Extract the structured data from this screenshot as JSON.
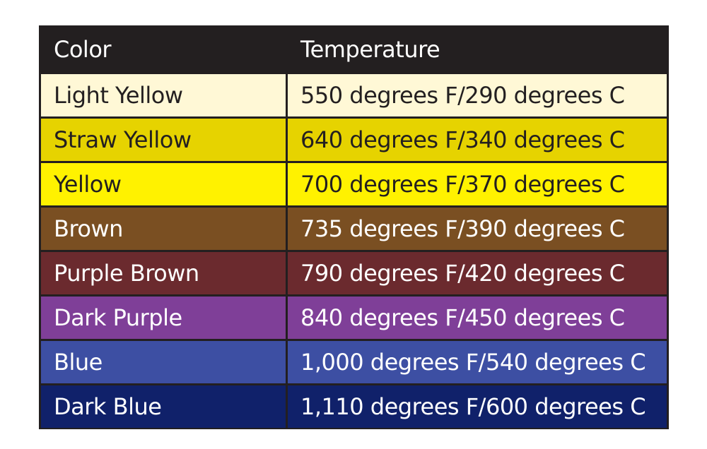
{
  "table": {
    "headers": [
      "Color",
      "Temperature"
    ],
    "rows": [
      {
        "color": "Light Yellow",
        "temperature": "550 degrees F/290 degrees C",
        "bg": "#fff8d6",
        "fg": "#231f20"
      },
      {
        "color": "Straw Yellow",
        "temperature": "640 degrees F/340 degrees C",
        "bg": "#e6d300",
        "fg": "#231f20"
      },
      {
        "color": "Yellow",
        "temperature": "700 degrees F/370 degrees C",
        "bg": "#fff200",
        "fg": "#231f20"
      },
      {
        "color": "Brown",
        "temperature": "735 degrees F/390 degrees C",
        "bg": "#7a4f22",
        "fg": "#ffffff"
      },
      {
        "color": "Purple Brown",
        "temperature": "790 degrees F/420 degrees C",
        "bg": "#6b2a2e",
        "fg": "#ffffff"
      },
      {
        "color": "Dark Purple",
        "temperature": "840 degrees F/450 degrees C",
        "bg": "#7f3f98",
        "fg": "#ffffff"
      },
      {
        "color": "Blue",
        "temperature": "1,000 degrees F/540 degrees C",
        "bg": "#3d4fa3",
        "fg": "#ffffff"
      },
      {
        "color": "Dark Blue",
        "temperature": "1,110 degrees F/600 degrees C",
        "bg": "#10216a",
        "fg": "#ffffff"
      }
    ]
  }
}
